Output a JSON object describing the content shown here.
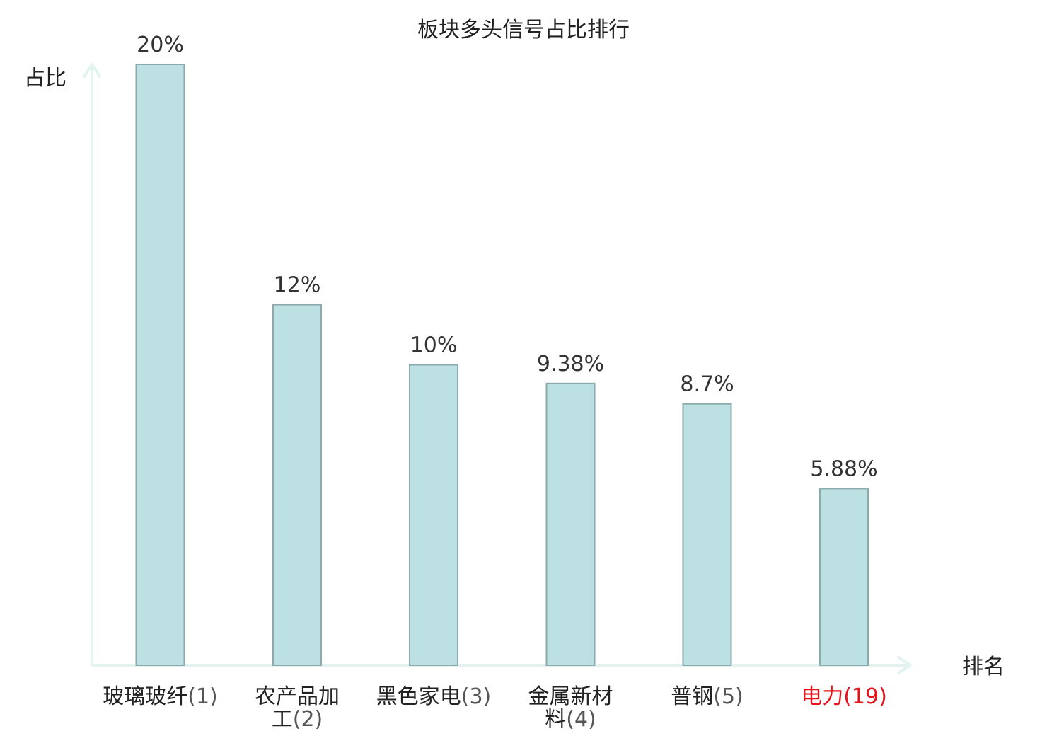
{
  "chart_data": {
    "type": "bar",
    "title": "板块多头信号占比排行",
    "ylabel": "占比",
    "xlabel": "排名",
    "ylim": [
      0,
      20
    ],
    "grid": false,
    "categories": [
      {
        "name": "玻璃玻纤",
        "rank": "(1)",
        "lines": [
          {
            "text": "玻璃玻纤",
            "num": "(1)"
          }
        ],
        "highlight": false
      },
      {
        "name": "农产品加工",
        "rank": "(2)",
        "lines": [
          {
            "text": "农产品加",
            "num": ""
          },
          {
            "text": "工",
            "num": "(2)"
          }
        ],
        "highlight": false
      },
      {
        "name": "黑色家电",
        "rank": "(3)",
        "lines": [
          {
            "text": "黑色家电",
            "num": "(3)"
          }
        ],
        "highlight": false
      },
      {
        "name": "金属新材料",
        "rank": "(4)",
        "lines": [
          {
            "text": "金属新材",
            "num": ""
          },
          {
            "text": "料",
            "num": "(4)"
          }
        ],
        "highlight": false
      },
      {
        "name": "普钢",
        "rank": "(5)",
        "lines": [
          {
            "text": "普钢",
            "num": "(5)"
          }
        ],
        "highlight": false
      },
      {
        "name": "电力",
        "rank": "(19)",
        "lines": [
          {
            "text": "电力",
            "num": "(19)"
          }
        ],
        "highlight": true
      }
    ],
    "values": [
      20,
      12,
      10,
      9.38,
      8.7,
      5.88
    ],
    "data_labels": [
      "20%",
      "12%",
      "10%",
      "9.38%",
      "8.7%",
      "5.88%"
    ],
    "colors": {
      "bar_fill": "#bde0e3",
      "bar_stroke": "#8aaaae",
      "axis": "#e3f3f0",
      "highlight": "#e8121b"
    }
  }
}
